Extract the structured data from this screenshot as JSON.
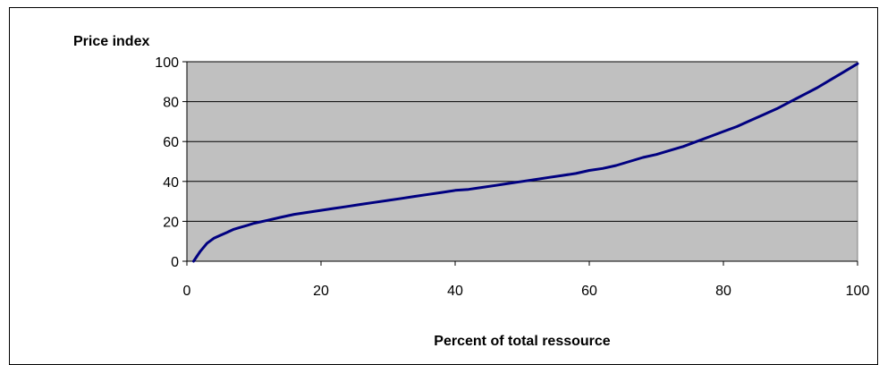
{
  "chart_data": {
    "type": "line",
    "title": "",
    "xlabel": "Percent of total ressource",
    "ylabel": "Price index",
    "xlim": [
      0,
      100
    ],
    "ylim": [
      0,
      100
    ],
    "x_ticks": [
      0,
      20,
      40,
      60,
      80,
      100
    ],
    "y_ticks": [
      0,
      20,
      40,
      60,
      80,
      100
    ],
    "grid": "horizontal",
    "legend": "none",
    "colors": {
      "plot_background": "#c0c0c0",
      "line": "#000080",
      "gridline": "#000000"
    },
    "series": [
      {
        "x": [
          1,
          2,
          3,
          4,
          5,
          6,
          7,
          8,
          9,
          10,
          12,
          14,
          16,
          18,
          20,
          22,
          24,
          26,
          28,
          30,
          32,
          34,
          36,
          38,
          40,
          42,
          44,
          46,
          48,
          50,
          52,
          54,
          56,
          58,
          60,
          62,
          64,
          66,
          68,
          70,
          72,
          74,
          76,
          78,
          80,
          82,
          84,
          86,
          88,
          90,
          92,
          94,
          96,
          98,
          100
        ],
        "values": [
          0,
          5,
          9,
          11.5,
          13,
          14.5,
          16,
          17,
          18,
          19,
          20.5,
          22,
          23.5,
          24.5,
          25.5,
          26.5,
          27.5,
          28.5,
          29.5,
          30.5,
          31.5,
          32.5,
          33.5,
          34.5,
          35.5,
          36,
          37,
          38,
          39,
          40,
          41,
          42,
          43,
          44,
          45.5,
          46.5,
          48,
          50,
          52,
          53.5,
          55.5,
          57.5,
          60,
          62.5,
          65,
          67.5,
          70.5,
          73.5,
          76.5,
          80,
          83.5,
          87,
          91,
          95,
          99
        ]
      }
    ]
  }
}
